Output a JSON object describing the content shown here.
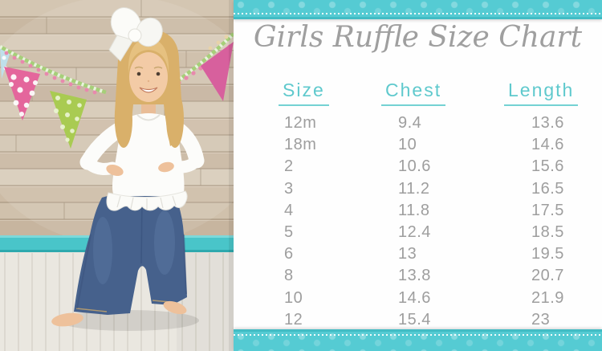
{
  "panel": {
    "title": "Girls Ruffle Size Chart",
    "columns": [
      "Size",
      "Chest",
      "Length"
    ],
    "rows": [
      [
        "12m",
        "9.4",
        "13.6"
      ],
      [
        "18m",
        "10",
        "14.6"
      ],
      [
        "2",
        "10.6",
        "15.6"
      ],
      [
        "3",
        "11.2",
        "16.5"
      ],
      [
        "4",
        "11.8",
        "17.5"
      ],
      [
        "5",
        "12.4",
        "18.5"
      ],
      [
        "6",
        "13",
        "19.5"
      ],
      [
        "8",
        "13.8",
        "20.7"
      ],
      [
        "10",
        "14.6",
        "21.9"
      ],
      [
        "12",
        "15.4",
        "23"
      ]
    ]
  },
  "photo": {
    "alt": "Little girl with a white hair bow wearing a white long-sleeved ruffle top and blue jeans, barefoot, standing hands-on-hips in front of a wood plank wall with polka-dot bunting flags and a teal baseboard"
  },
  "colors": {
    "accent_teal": "#55cbd3",
    "accent_teal_dark": "#41bcc4",
    "header_teal": "#5fc9cd",
    "text_gray": "#9e9e9e",
    "title_gray": "#9f9f9f",
    "baseboard_teal": "#49c5c9"
  },
  "chart_data": {
    "type": "table",
    "title": "Girls Ruffle Size Chart",
    "columns": [
      "Size",
      "Chest",
      "Length"
    ],
    "rows": [
      [
        "12m",
        "9.4",
        "13.6"
      ],
      [
        "18m",
        "10",
        "14.6"
      ],
      [
        "2",
        "10.6",
        "15.6"
      ],
      [
        "3",
        "11.2",
        "16.5"
      ],
      [
        "4",
        "11.8",
        "17.5"
      ],
      [
        "5",
        "12.4",
        "18.5"
      ],
      [
        "6",
        "13",
        "19.5"
      ],
      [
        "8",
        "13.8",
        "20.7"
      ],
      [
        "10",
        "14.6",
        "21.9"
      ],
      [
        "12",
        "15.4",
        "23"
      ]
    ]
  }
}
